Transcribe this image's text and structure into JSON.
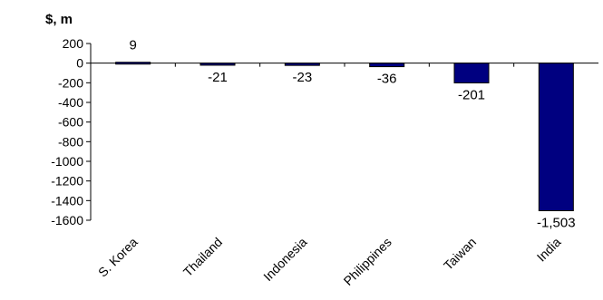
{
  "chart_data": {
    "type": "bar",
    "ylabel": "$, m",
    "categories": [
      "S. Korea",
      "Thailand",
      "Indonesia",
      "Philippines",
      "Taiwan",
      "India"
    ],
    "values": [
      9,
      -21,
      -23,
      -36,
      -201,
      -1503
    ],
    "data_labels": [
      "9",
      "-21",
      "-23",
      "-36",
      "-201",
      "-1,503"
    ],
    "ylim": [
      -1600,
      200
    ],
    "yticks": [
      200,
      0,
      -200,
      -400,
      -600,
      -800,
      -1000,
      -1200,
      -1400,
      -1600
    ],
    "bar_color": "#000080",
    "grid": false,
    "legend": "none"
  }
}
